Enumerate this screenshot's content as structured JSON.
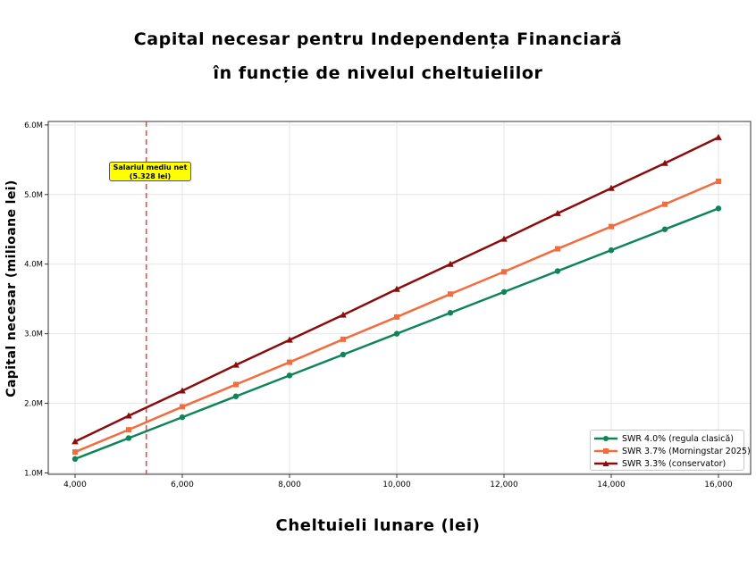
{
  "chart_data": {
    "type": "line",
    "title": "Capital necesar pentru Independența Financiară",
    "subtitle": "în funcție de nivelul cheltuielilor",
    "xlabel": "Cheltuieli lunare (lei)",
    "ylabel": "Capital necesar (milioane lei)",
    "x": [
      4000,
      5000,
      6000,
      7000,
      8000,
      9000,
      10000,
      11000,
      12000,
      13000,
      14000,
      15000,
      16000
    ],
    "xlim": [
      3500,
      16600
    ],
    "ylim": [
      0.98,
      6.05
    ],
    "x_ticks": [
      4000,
      6000,
      8000,
      10000,
      12000,
      14000,
      16000
    ],
    "x_tick_labels": [
      "4,000",
      "6,000",
      "8,000",
      "10,000",
      "12,000",
      "14,000",
      "16,000"
    ],
    "y_ticks": [
      1.0,
      2.0,
      3.0,
      4.0,
      5.0,
      6.0
    ],
    "y_tick_labels": [
      "1.0M",
      "2.0M",
      "3.0M",
      "4.0M",
      "5.0M",
      "6.0M"
    ],
    "grid": true,
    "legend_position": "bottom-right",
    "series": [
      {
        "name": "SWR 4.0% (regula clasică)",
        "color": "#0e8458",
        "marker": "circle",
        "values": [
          1.2,
          1.5,
          1.8,
          2.1,
          2.4,
          2.7,
          3.0,
          3.3,
          3.6,
          3.9,
          4.2,
          4.5,
          4.8
        ]
      },
      {
        "name": "SWR 3.7% (Morningstar 2025)",
        "color": "#f26c3d",
        "marker": "square",
        "values": [
          1.3,
          1.62,
          1.95,
          2.27,
          2.59,
          2.92,
          3.24,
          3.57,
          3.89,
          4.22,
          4.54,
          4.86,
          5.19
        ]
      },
      {
        "name": "SWR 3.3% (conservator)",
        "color": "#8b0c0c",
        "marker": "triangle",
        "values": [
          1.45,
          1.82,
          2.18,
          2.55,
          2.91,
          3.27,
          3.64,
          4.0,
          4.36,
          4.73,
          5.09,
          5.45,
          5.82
        ]
      }
    ],
    "reference_line": {
      "x": 5328,
      "color": "#e8423a",
      "style": "dashed"
    },
    "annotation": {
      "line1": "Salariul mediu net",
      "line2": "(5.328 lei)",
      "background": "#ffff00",
      "x": 5328,
      "y": 5.33
    }
  }
}
